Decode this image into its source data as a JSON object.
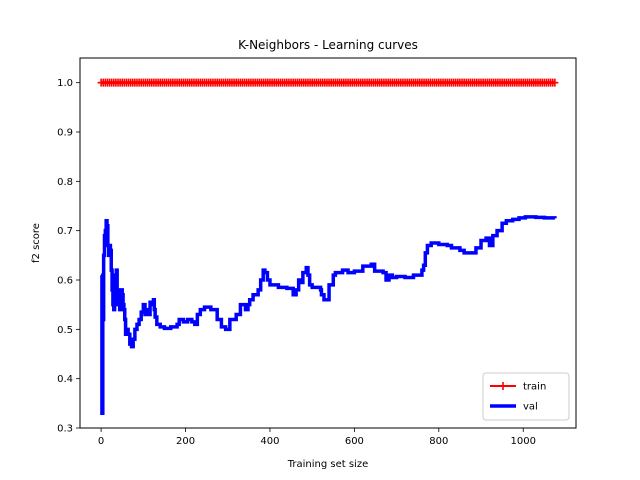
{
  "chart_data": {
    "type": "line",
    "title": "K-Neighbors - Learning curves",
    "xlabel": "Training set size",
    "ylabel": "f2 score",
    "xlim": [
      -50,
      1125
    ],
    "ylim": [
      0.3,
      1.05
    ],
    "xticks": [
      0,
      200,
      400,
      600,
      800,
      1000
    ],
    "xtick_labels": [
      "0",
      "200",
      "400",
      "600",
      "800",
      "1000"
    ],
    "yticks": [
      0.3,
      0.4,
      0.5,
      0.6,
      0.7,
      0.8,
      0.9,
      1.0
    ],
    "ytick_labels": [
      "0.3",
      "0.4",
      "0.5",
      "0.6",
      "0.7",
      "0.8",
      "0.9",
      "1.0"
    ],
    "grid": false,
    "legend_position": "lower-right",
    "series": [
      {
        "name": "train",
        "color": "#ff0000",
        "marker": "plus",
        "step": "post",
        "points": [
          [
            0,
            1.0
          ],
          [
            1075,
            1.0
          ]
        ]
      },
      {
        "name": "val",
        "color": "#0000ff",
        "marker": "none",
        "step": "post",
        "points": [
          [
            0,
            0.61
          ],
          [
            2,
            0.33
          ],
          [
            4,
            0.52
          ],
          [
            6,
            0.65
          ],
          [
            8,
            0.69
          ],
          [
            10,
            0.7
          ],
          [
            12,
            0.72
          ],
          [
            14,
            0.71
          ],
          [
            16,
            0.67
          ],
          [
            18,
            0.65
          ],
          [
            20,
            0.67
          ],
          [
            22,
            0.66
          ],
          [
            24,
            0.62
          ],
          [
            26,
            0.58
          ],
          [
            28,
            0.55
          ],
          [
            30,
            0.54
          ],
          [
            32,
            0.57
          ],
          [
            34,
            0.61
          ],
          [
            36,
            0.62
          ],
          [
            38,
            0.58
          ],
          [
            40,
            0.55
          ],
          [
            42,
            0.56
          ],
          [
            44,
            0.54
          ],
          [
            46,
            0.57
          ],
          [
            48,
            0.58
          ],
          [
            50,
            0.57
          ],
          [
            52,
            0.55
          ],
          [
            54,
            0.54
          ],
          [
            56,
            0.52
          ],
          [
            58,
            0.49
          ],
          [
            60,
            0.5
          ],
          [
            64,
            0.49
          ],
          [
            68,
            0.47
          ],
          [
            72,
            0.465
          ],
          [
            76,
            0.48
          ],
          [
            80,
            0.5
          ],
          [
            85,
            0.51
          ],
          [
            90,
            0.52
          ],
          [
            95,
            0.535
          ],
          [
            100,
            0.55
          ],
          [
            104,
            0.53
          ],
          [
            108,
            0.54
          ],
          [
            112,
            0.53
          ],
          [
            116,
            0.555
          ],
          [
            120,
            0.55
          ],
          [
            124,
            0.56
          ],
          [
            126,
            0.54
          ],
          [
            128,
            0.525
          ],
          [
            132,
            0.51
          ],
          [
            140,
            0.505
          ],
          [
            150,
            0.502
          ],
          [
            165,
            0.505
          ],
          [
            180,
            0.51
          ],
          [
            185,
            0.52
          ],
          [
            195,
            0.515
          ],
          [
            205,
            0.52
          ],
          [
            215,
            0.515
          ],
          [
            222,
            0.51
          ],
          [
            228,
            0.53
          ],
          [
            235,
            0.54
          ],
          [
            245,
            0.545
          ],
          [
            260,
            0.54
          ],
          [
            275,
            0.52
          ],
          [
            285,
            0.505
          ],
          [
            295,
            0.5
          ],
          [
            305,
            0.52
          ],
          [
            320,
            0.53
          ],
          [
            330,
            0.55
          ],
          [
            342,
            0.54
          ],
          [
            348,
            0.55
          ],
          [
            352,
            0.56
          ],
          [
            360,
            0.57
          ],
          [
            372,
            0.58
          ],
          [
            378,
            0.6
          ],
          [
            384,
            0.62
          ],
          [
            388,
            0.615
          ],
          [
            394,
            0.6
          ],
          [
            400,
            0.59
          ],
          [
            420,
            0.585
          ],
          [
            440,
            0.583
          ],
          [
            455,
            0.57
          ],
          [
            462,
            0.58
          ],
          [
            468,
            0.6
          ],
          [
            472,
            0.595
          ],
          [
            478,
            0.615
          ],
          [
            486,
            0.625
          ],
          [
            490,
            0.61
          ],
          [
            494,
            0.59
          ],
          [
            500,
            0.585
          ],
          [
            520,
            0.58
          ],
          [
            522,
            0.57
          ],
          [
            528,
            0.56
          ],
          [
            540,
            0.59
          ],
          [
            550,
            0.61
          ],
          [
            555,
            0.615
          ],
          [
            572,
            0.62
          ],
          [
            585,
            0.615
          ],
          [
            600,
            0.618
          ],
          [
            620,
            0.628
          ],
          [
            640,
            0.632
          ],
          [
            648,
            0.618
          ],
          [
            668,
            0.615
          ],
          [
            675,
            0.6
          ],
          [
            682,
            0.61
          ],
          [
            690,
            0.605
          ],
          [
            700,
            0.607
          ],
          [
            720,
            0.605
          ],
          [
            740,
            0.61
          ],
          [
            760,
            0.62
          ],
          [
            764,
            0.63
          ],
          [
            768,
            0.655
          ],
          [
            773,
            0.67
          ],
          [
            782,
            0.675
          ],
          [
            800,
            0.672
          ],
          [
            820,
            0.67
          ],
          [
            830,
            0.665
          ],
          [
            850,
            0.66
          ],
          [
            860,
            0.655
          ],
          [
            888,
            0.665
          ],
          [
            900,
            0.68
          ],
          [
            912,
            0.685
          ],
          [
            920,
            0.67
          ],
          [
            928,
            0.69
          ],
          [
            938,
            0.7
          ],
          [
            950,
            0.715
          ],
          [
            960,
            0.72
          ],
          [
            975,
            0.723
          ],
          [
            990,
            0.726
          ],
          [
            1005,
            0.728
          ],
          [
            1030,
            0.727
          ],
          [
            1050,
            0.726
          ],
          [
            1075,
            0.725
          ]
        ]
      }
    ]
  }
}
